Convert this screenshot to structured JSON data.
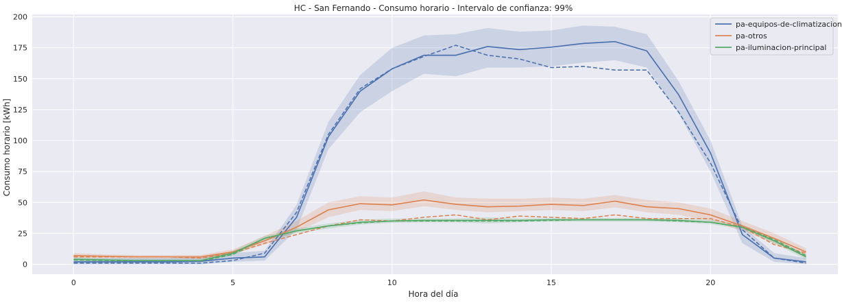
{
  "chart_data": {
    "type": "line",
    "title": "HC - San Fernando - Consumo horario - Intervalo de confianza: 99%",
    "xlabel": "Hora del día",
    "ylabel": "Consumo horario [kWh]",
    "xlim": [
      -1.3,
      24.0
    ],
    "ylim": [
      -8,
      202
    ],
    "xticks": [
      0,
      5,
      10,
      15,
      20
    ],
    "yticks": [
      0,
      25,
      50,
      75,
      100,
      125,
      150,
      175,
      200
    ],
    "grid": true,
    "background": "#eaeaf2",
    "legend_position": "top-right",
    "x": [
      0,
      1,
      2,
      3,
      4,
      5,
      6,
      7,
      8,
      9,
      10,
      11,
      12,
      13,
      14,
      15,
      16,
      17,
      18,
      19,
      20,
      21,
      22,
      23
    ],
    "series": [
      {
        "name": "pa-equipos-de-climatizacion",
        "color": "#4c72b0",
        "values": [
          2,
          2,
          2,
          2,
          2.5,
          5,
          6,
          38,
          103,
          140,
          158,
          169,
          169,
          176,
          173.5,
          175.5,
          178.5,
          180,
          172.5,
          137,
          90,
          24,
          5,
          2
        ],
        "lower": [
          0,
          0,
          0,
          0,
          0,
          2,
          3,
          28,
          93,
          123,
          140,
          154,
          152,
          159,
          159,
          160,
          163,
          165,
          159,
          122,
          75,
          17,
          2,
          0
        ],
        "upper": [
          5,
          5,
          5,
          5,
          6,
          9,
          11,
          48,
          115,
          153,
          175,
          185,
          186,
          191,
          188,
          189,
          193,
          192,
          186,
          148,
          100,
          31,
          9,
          5
        ],
        "reference": [
          1,
          1,
          1,
          1,
          1,
          3,
          9,
          42,
          105,
          142,
          158,
          168,
          177,
          169,
          166,
          159,
          160,
          157,
          157,
          123,
          82,
          28,
          5,
          1
        ]
      },
      {
        "name": "pa-otros",
        "color": "#dd8452",
        "values": [
          7,
          6.5,
          6,
          6,
          6,
          10,
          19,
          30,
          44,
          49,
          48,
          52,
          48.5,
          46.5,
          47,
          48.5,
          47.5,
          51,
          46.5,
          45,
          40,
          31,
          21,
          10
        ],
        "lower": [
          5,
          5,
          4.5,
          4.5,
          4.5,
          8,
          16,
          26,
          38,
          44,
          43,
          47,
          44,
          42,
          43,
          44,
          43,
          46,
          42,
          40,
          35,
          27,
          17,
          7
        ],
        "upper": [
          9,
          8,
          7.5,
          7.5,
          7.5,
          12,
          23,
          35,
          50,
          55,
          54,
          59,
          54,
          53,
          53,
          54,
          53,
          56,
          52,
          50,
          45,
          35,
          25,
          13
        ],
        "reference": [
          6,
          6,
          6,
          6,
          5,
          9,
          17,
          24,
          31,
          36,
          35,
          38,
          40,
          36,
          39,
          38,
          37,
          40,
          37,
          37,
          37,
          30,
          16,
          9
        ]
      },
      {
        "name": "pa-iluminacion-principal",
        "color": "#55a868",
        "values": [
          4,
          3.5,
          3,
          3,
          3,
          9,
          21,
          27,
          31,
          34,
          35,
          35.5,
          35.5,
          35.5,
          35.5,
          36,
          36,
          36,
          36,
          35.5,
          34,
          30,
          19,
          6
        ],
        "lower": [
          2.5,
          2.5,
          2,
          2,
          2,
          7,
          19,
          25,
          29,
          32,
          33.5,
          34,
          34,
          33,
          34,
          34.5,
          34.5,
          34.5,
          34.5,
          34,
          32.5,
          28.5,
          17,
          4
        ],
        "upper": [
          5.5,
          5,
          4.5,
          4.5,
          4.5,
          11,
          23,
          29,
          33,
          36,
          37,
          37,
          37,
          38,
          37,
          37.5,
          37.5,
          37.5,
          37.5,
          37,
          36,
          32,
          21,
          8
        ],
        "reference": [
          3.5,
          3,
          2.5,
          2.5,
          2.5,
          8,
          21,
          27,
          31,
          33.5,
          35,
          35,
          35,
          35,
          35,
          35.5,
          36,
          36,
          36,
          35,
          34,
          30,
          20,
          7
        ]
      }
    ]
  }
}
